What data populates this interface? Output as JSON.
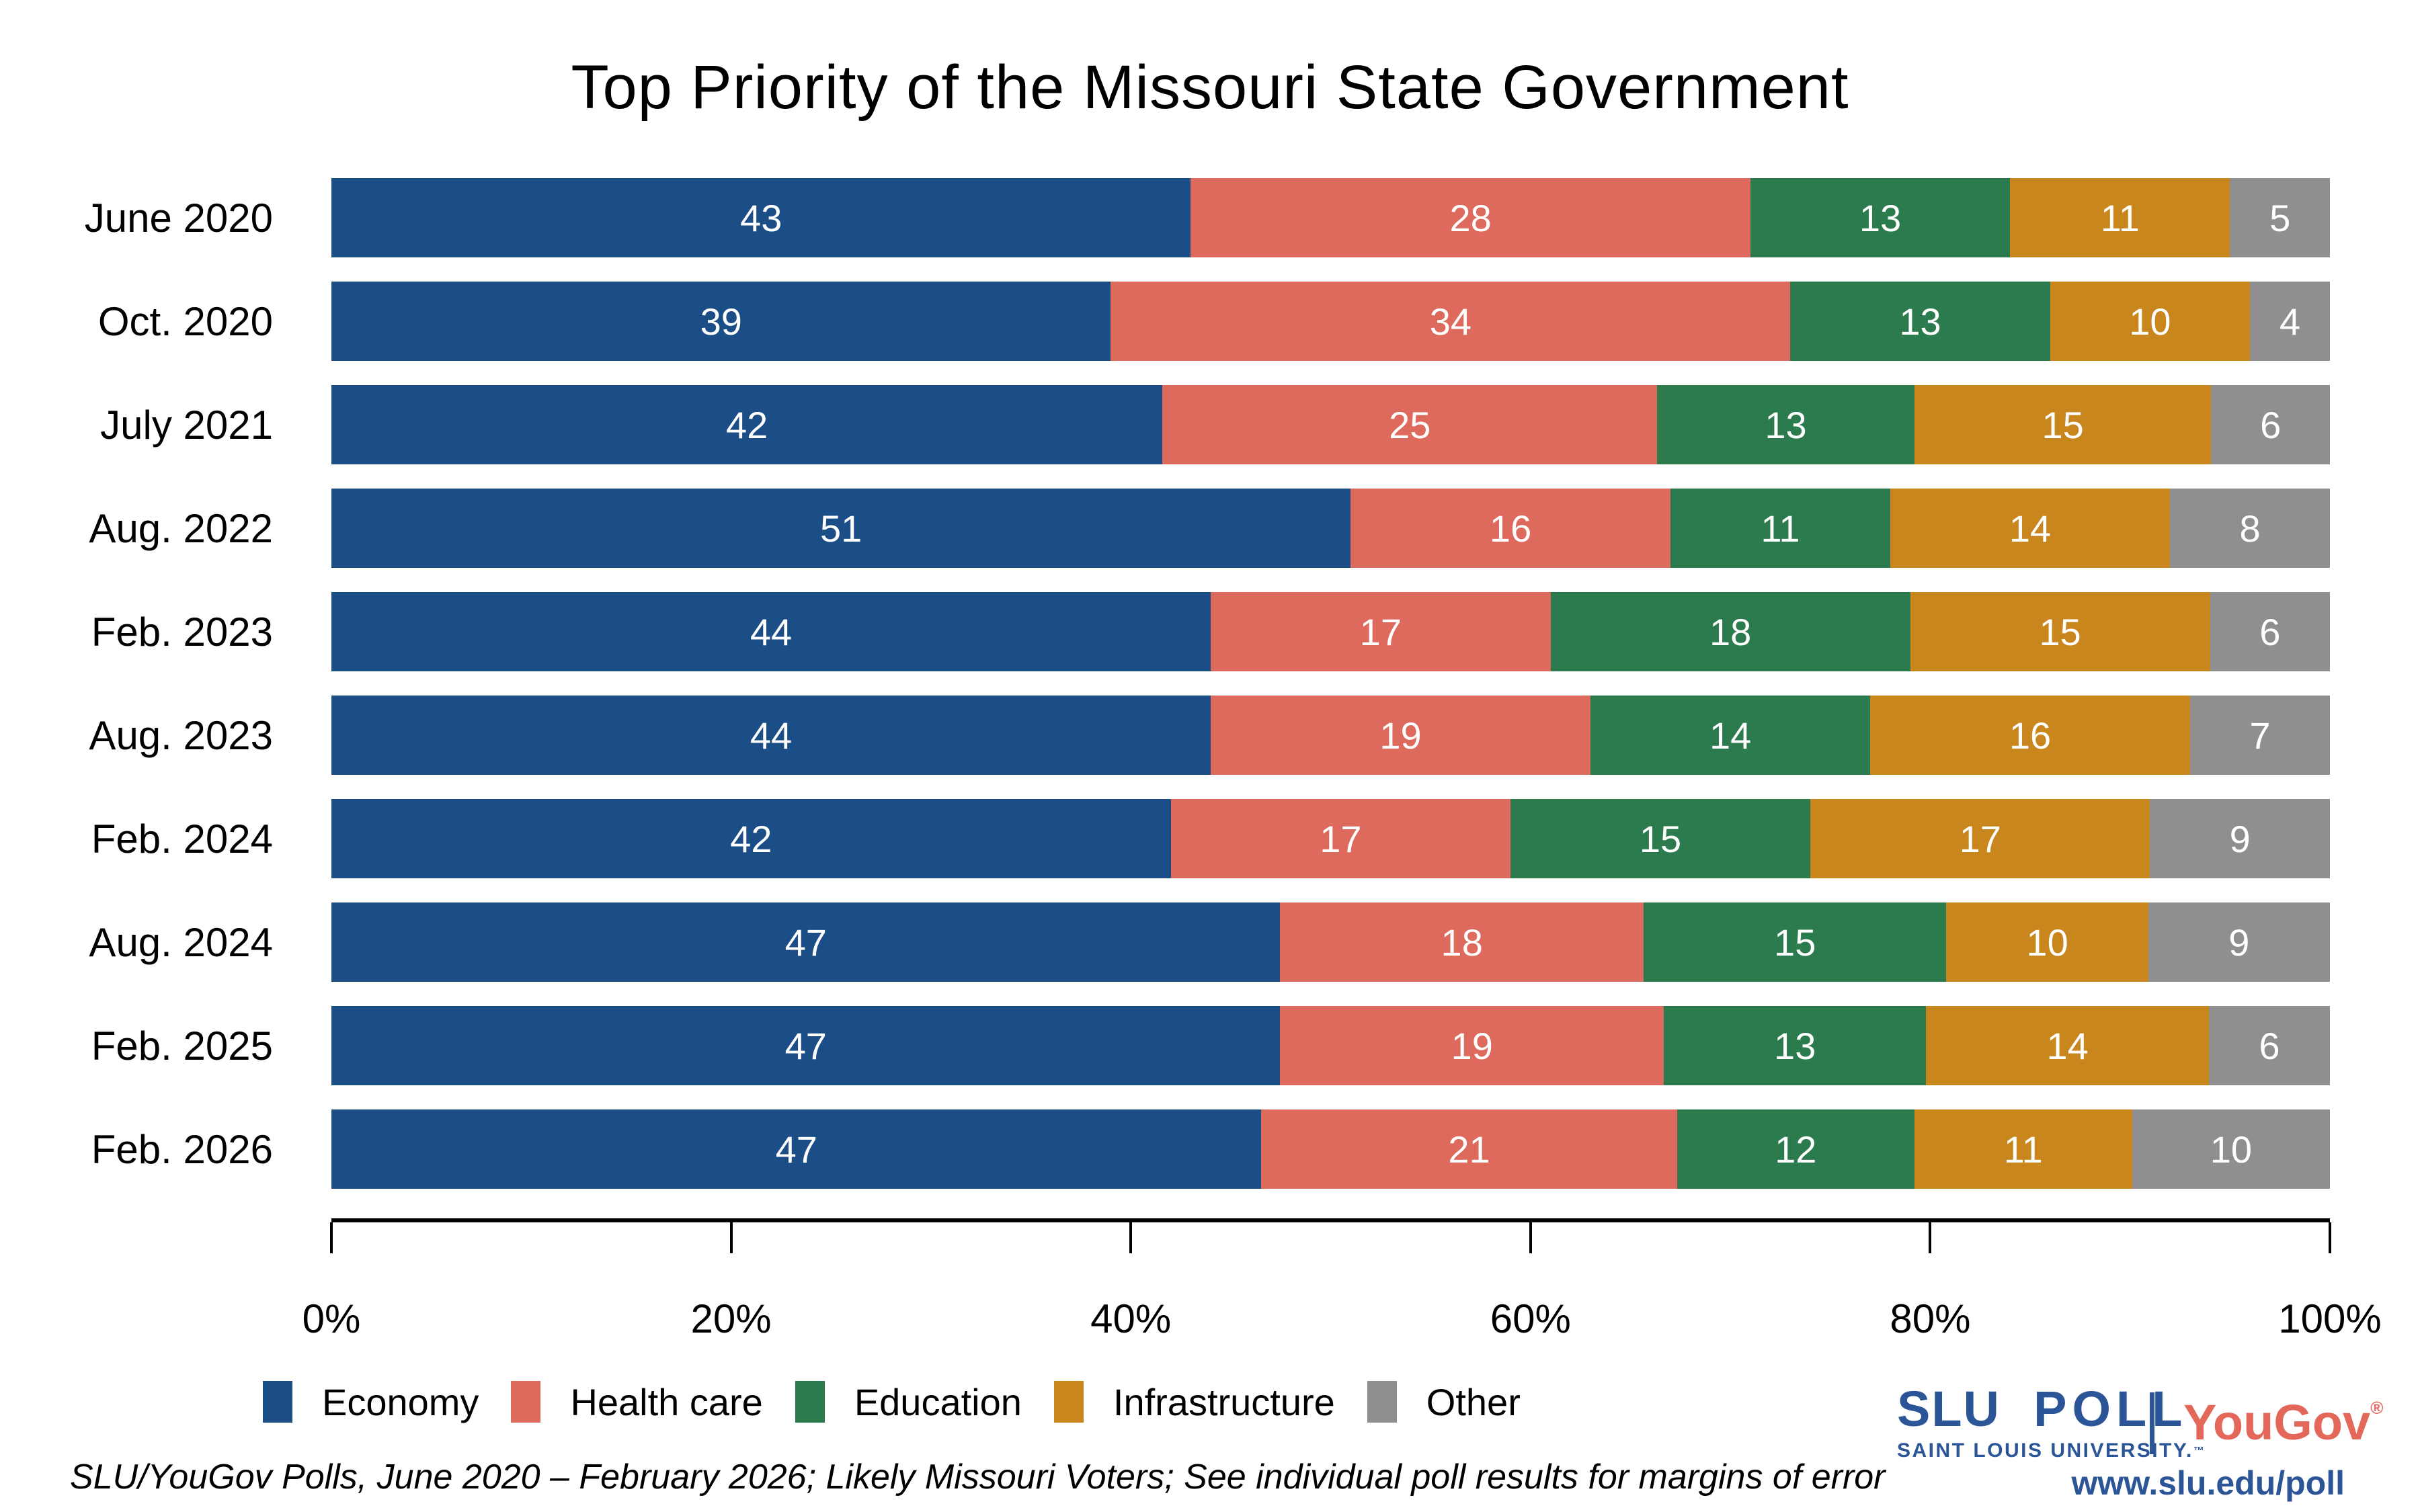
{
  "title": "Top Priority of the Missouri State Government",
  "chart_data": {
    "type": "bar",
    "stacked": true,
    "orientation": "horizontal",
    "title": "Top Priority of the Missouri State Government",
    "categories": [
      "June 2020",
      "Oct. 2020",
      "July 2021",
      "Aug. 2022",
      "Feb. 2023",
      "Aug. 2023",
      "Feb. 2024",
      "Aug. 2024",
      "Feb. 2025",
      "Feb. 2026"
    ],
    "series": [
      {
        "name": "Economy",
        "color": "#1b4e87",
        "values": [
          43,
          39,
          42,
          51,
          44,
          44,
          42,
          47,
          47,
          47
        ]
      },
      {
        "name": "Health care",
        "color": "#dd6a5c",
        "values": [
          28,
          34,
          25,
          16,
          17,
          19,
          17,
          18,
          19,
          21
        ]
      },
      {
        "name": "Education",
        "color": "#2c7b4e",
        "values": [
          13,
          13,
          13,
          11,
          18,
          14,
          15,
          15,
          13,
          12
        ]
      },
      {
        "name": "Infrastructure",
        "color": "#c8861d",
        "values": [
          11,
          10,
          15,
          14,
          15,
          16,
          17,
          10,
          14,
          11
        ]
      },
      {
        "name": "Other",
        "color": "#8f8f8f",
        "values": [
          5,
          4,
          6,
          8,
          6,
          7,
          9,
          9,
          6,
          10
        ]
      }
    ],
    "x_axis": {
      "tick_labels": [
        "0%",
        "20%",
        "40%",
        "60%",
        "80%",
        "100%"
      ],
      "tick_values": [
        0,
        20,
        40,
        60,
        80,
        100
      ],
      "range": [
        0,
        100
      ]
    },
    "value_labels_shown": true,
    "legend_position": "bottom-left",
    "grid": false
  },
  "source_note": "SLU/YouGov Polls, June 2020 – February 2026; Likely Missouri Voters; See individual poll results for margins of error",
  "footer": {
    "slu_name": "SLU",
    "slu_poll": "POLL",
    "slu_university": "SAINT LOUIS UNIVERSITY.",
    "slu_tm": "™",
    "yougov": "YouGov",
    "yougov_reg": "®",
    "url": "www.slu.edu/poll",
    "colors": {
      "slu_blue": "#2b5597",
      "yougov_red": "#e4685a"
    }
  }
}
